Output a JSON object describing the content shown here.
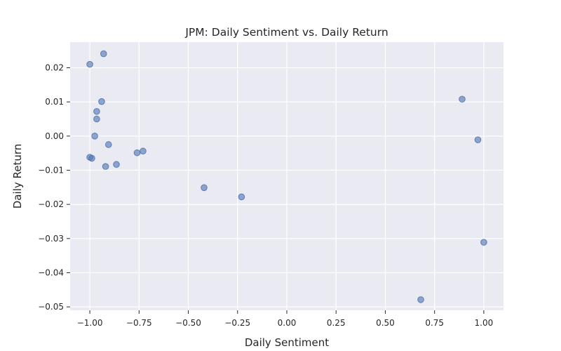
{
  "chart_data": {
    "type": "scatter",
    "title": "JPM: Daily Sentiment vs. Daily Return",
    "xlabel": "Daily Sentiment",
    "ylabel": "Daily Return",
    "xlim": [
      -1.1,
      1.1
    ],
    "ylim": [
      -0.051,
      0.0275
    ],
    "xticks": [
      -1.0,
      -0.75,
      -0.5,
      -0.25,
      0.0,
      0.25,
      0.5,
      0.75,
      1.0
    ],
    "xtick_labels": [
      "−1.00",
      "−0.75",
      "−0.50",
      "−0.25",
      "0.00",
      "0.25",
      "0.50",
      "0.75",
      "1.00"
    ],
    "yticks": [
      0.02,
      0.01,
      0.0,
      -0.01,
      -0.02,
      -0.03,
      -0.04,
      -0.05
    ],
    "ytick_labels": [
      "0.02",
      "0.01",
      "0.00",
      "−0.01",
      "−0.02",
      "−0.03",
      "−0.04",
      "−0.05"
    ],
    "grid": true,
    "background_color": "#eaeaf2",
    "point_color": "#4c72b0",
    "points": [
      {
        "x": -0.93,
        "y": 0.0241
      },
      {
        "x": -1.0,
        "y": 0.021
      },
      {
        "x": -0.94,
        "y": 0.0101
      },
      {
        "x": -0.965,
        "y": 0.0072
      },
      {
        "x": -0.965,
        "y": 0.005
      },
      {
        "x": -0.975,
        "y": 0.0
      },
      {
        "x": -0.905,
        "y": -0.0025
      },
      {
        "x": -1.0,
        "y": -0.0062
      },
      {
        "x": -0.99,
        "y": -0.0065
      },
      {
        "x": -0.92,
        "y": -0.0089
      },
      {
        "x": -0.865,
        "y": -0.0083
      },
      {
        "x": -0.76,
        "y": -0.0049
      },
      {
        "x": -0.73,
        "y": -0.0044
      },
      {
        "x": -0.42,
        "y": -0.0151
      },
      {
        "x": -0.23,
        "y": -0.0178
      },
      {
        "x": 0.89,
        "y": 0.0108
      },
      {
        "x": 0.97,
        "y": -0.0011
      },
      {
        "x": 1.0,
        "y": -0.0311
      },
      {
        "x": 0.68,
        "y": -0.0479
      }
    ]
  }
}
